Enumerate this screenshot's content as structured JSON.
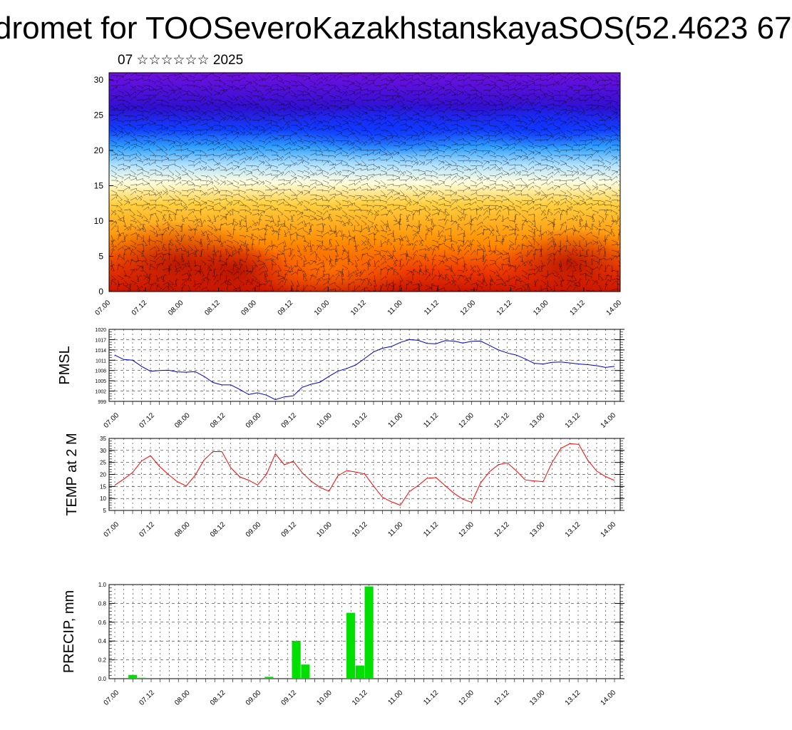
{
  "header": {
    "title": "dromet for TOOSeveroKazakhstanskayaSOS(52.4623 67",
    "subtitle": "07 ☆☆☆☆☆☆ 2025"
  },
  "chart_data": [
    {
      "type": "heatmap",
      "title": "",
      "xlabel": "",
      "ylabel": "",
      "x_tick_labels": [
        "07.00",
        "07.12",
        "08.00",
        "08.12",
        "09.00",
        "09.12",
        "10.00",
        "10.12",
        "11.00",
        "11.12",
        "12.00",
        "12.12",
        "13.00",
        "13.12",
        "14.00"
      ],
      "y_tick_labels": [
        "0",
        "5",
        "10",
        "15",
        "20",
        "25",
        "30"
      ],
      "ylim": [
        0,
        31
      ],
      "colormap": [
        "#c81400",
        "#f03c00",
        "#ff8c00",
        "#ffd040",
        "#ffffe0",
        "#b0e0ff",
        "#30a0ff",
        "#1040ff",
        "#3010d0",
        "#7010e0"
      ],
      "overlay": "wind barbs"
    },
    {
      "type": "line",
      "title": "",
      "xlabel": "",
      "ylabel": "PMSL",
      "ylim": [
        999,
        1020
      ],
      "y_tick_labels": [
        "999",
        "1002",
        "1005",
        "1008",
        "1011",
        "1014",
        "1017",
        "1020"
      ],
      "x_tick_labels": [
        "07.00",
        "07.12",
        "08.00",
        "08.12",
        "09.00",
        "09.12",
        "10.00",
        "10.12",
        "11.00",
        "11.12",
        "12.00",
        "12.12",
        "13.00",
        "13.12",
        "14.00"
      ],
      "color": "#0000cc",
      "series": [
        {
          "values": [
            1012.5,
            1011.2,
            1011.0,
            1009.2,
            1007.8,
            1008.0,
            1008.1,
            1007.6,
            1007.5,
            1007.7,
            1006.3,
            1004.5,
            1003.8,
            1003.8,
            1002.5,
            1001.0,
            1001.5,
            1000.8,
            999.5,
            1000.3,
            1000.6,
            1003.1,
            1004.0,
            1004.6,
            1006.3,
            1007.8,
            1008.6,
            1009.6,
            1011.5,
            1013.4,
            1014.5,
            1015.0,
            1016.2,
            1017.0,
            1016.8,
            1015.9,
            1015.8,
            1016.7,
            1016.6,
            1016.0,
            1016.5,
            1016.6,
            1015.3,
            1014.0,
            1013.1,
            1012.5,
            1011.4,
            1010.1,
            1009.9,
            1010.4,
            1010.5,
            1010.2,
            1009.9,
            1009.7,
            1009.4,
            1008.9,
            1009.2
          ]
        }
      ]
    },
    {
      "type": "line",
      "title": "",
      "xlabel": "",
      "ylabel": "TEMP at 2 M",
      "ylim": [
        5,
        35
      ],
      "y_tick_labels": [
        "5",
        "10",
        "15",
        "20",
        "25",
        "30",
        "35"
      ],
      "x_tick_labels": [
        "07.00",
        "07.12",
        "08.00",
        "08.12",
        "09.00",
        "09.12",
        "10.00",
        "10.12",
        "11.00",
        "11.12",
        "12.00",
        "12.12",
        "13.00",
        "13.12",
        "14.00"
      ],
      "color": "#ff0000",
      "series": [
        {
          "values": [
            15.5,
            18.0,
            20.8,
            25.6,
            27.8,
            23.4,
            20.0,
            17.0,
            15.2,
            19.6,
            26.0,
            29.5,
            29.5,
            22.8,
            19.0,
            17.6,
            15.6,
            20.0,
            28.6,
            24.0,
            25.5,
            20.7,
            17.2,
            14.6,
            13.0,
            19.4,
            21.6,
            21.0,
            20.2,
            15.2,
            10.5,
            8.6,
            7.2,
            12.8,
            15.4,
            18.4,
            18.7,
            15.4,
            12.2,
            9.7,
            8.4,
            16.5,
            21.2,
            24.1,
            24.8,
            21.5,
            17.7,
            17.3,
            17.0,
            25.0,
            30.9,
            32.8,
            32.5,
            26.0,
            21.4,
            19.1,
            17.5
          ]
        }
      ]
    },
    {
      "type": "bar",
      "title": "",
      "xlabel": "",
      "ylabel": "PRECIP, mm",
      "ylim": [
        0,
        1.0
      ],
      "y_tick_labels": [
        "0.0",
        "0.2",
        "0.4",
        "0.6",
        "0.8",
        "1.0"
      ],
      "x_tick_labels": [
        "07.00",
        "07.12",
        "08.00",
        "08.12",
        "09.00",
        "09.12",
        "10.00",
        "10.12",
        "11.00",
        "11.12",
        "12.00",
        "12.12",
        "13.00",
        "13.12",
        "14.00"
      ],
      "color": "#00e000",
      "series": [
        {
          "values": [
            0,
            0,
            0.04,
            0.01,
            0,
            0,
            0,
            0,
            0,
            0,
            0,
            0,
            0,
            0,
            0,
            0,
            0,
            0.02,
            0,
            0,
            0.4,
            0.15,
            0,
            0,
            0,
            0,
            0.7,
            0.14,
            0.98,
            0,
            0,
            0,
            0,
            0,
            0,
            0,
            0,
            0,
            0,
            0,
            0,
            0,
            0,
            0,
            0,
            0,
            0,
            0,
            0,
            0,
            0,
            0,
            0,
            0,
            0,
            0
          ]
        }
      ]
    }
  ]
}
